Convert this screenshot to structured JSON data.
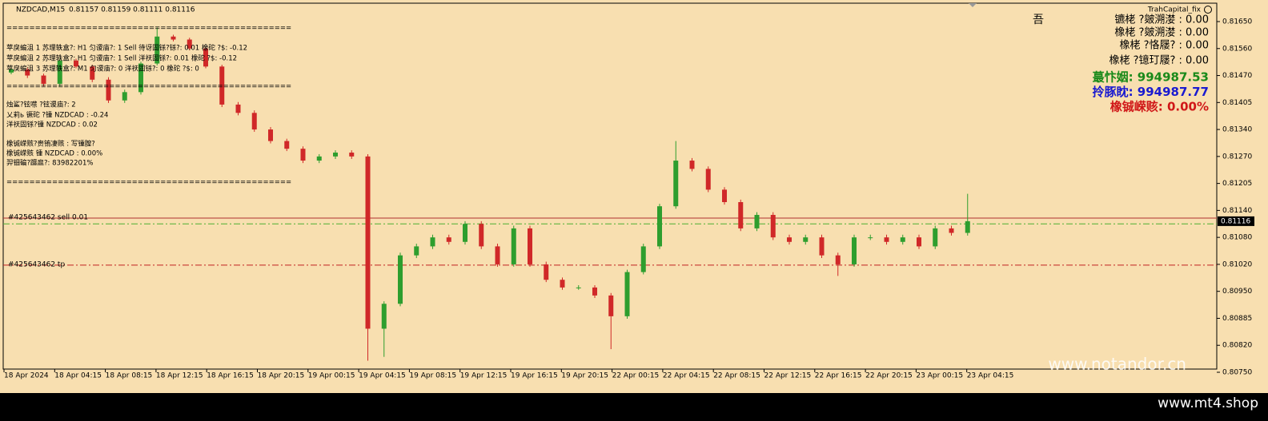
{
  "chart_data": {
    "type": "candlestick",
    "title": "NZDCAD,M15",
    "quote": "0.81157 0.81159 0.81111 0.81116",
    "robot": "TrahCapital_fix",
    "up_color": "#2e9e2e",
    "down_color": "#d02828",
    "background": "#f8dfb0",
    "open": [
      0.8148,
      0.8149,
      0.8147,
      0.8145,
      0.8152,
      0.815,
      0.8146,
      0.8141,
      0.8143,
      0.8151,
      0.816,
      0.8159,
      0.8156,
      0.815,
      0.814,
      0.8138,
      0.8134,
      0.8131,
      0.8129,
      0.8126,
      0.8127,
      0.8128,
      0.8127,
      0.8086,
      0.8092,
      0.8104,
      0.8106,
      0.8108,
      0.8107,
      0.8111,
      0.8106,
      0.8102,
      0.811,
      0.8102,
      0.8098,
      0.8096,
      0.8096,
      0.8094,
      0.8089,
      0.81,
      0.8106,
      0.8115,
      0.8126,
      0.8124,
      0.8119,
      0.8116,
      0.811,
      0.8113,
      0.8108,
      0.8107,
      0.8108,
      0.8104,
      0.8102,
      0.8108,
      0.8108,
      0.8107,
      0.8108,
      0.8106,
      0.811,
      0.8109
    ],
    "high": [
      0.81496,
      0.81496,
      0.81476,
      0.81526,
      0.81526,
      0.81506,
      0.81466,
      0.81436,
      0.81516,
      0.8163,
      0.81606,
      0.81596,
      0.81566,
      0.81506,
      0.81406,
      0.81386,
      0.81346,
      0.81316,
      0.81296,
      0.81276,
      0.81286,
      0.81286,
      0.81276,
      0.80926,
      0.81046,
      0.81066,
      0.81086,
      0.81086,
      0.81116,
      0.81116,
      0.81066,
      0.81106,
      0.81106,
      0.81026,
      0.80986,
      0.80966,
      0.80966,
      0.80946,
      0.81006,
      0.81066,
      0.81156,
      0.8131,
      0.81266,
      0.81246,
      0.81196,
      0.81166,
      0.81136,
      0.81136,
      0.81086,
      0.81086,
      0.81086,
      0.81046,
      0.81086,
      0.81086,
      0.81086,
      0.81086,
      0.81086,
      0.81106,
      0.81106,
      0.8118
    ],
    "low": [
      0.81474,
      0.81464,
      0.81444,
      0.81444,
      0.81494,
      0.81454,
      0.81404,
      0.81404,
      0.81424,
      0.81504,
      0.81584,
      0.81554,
      0.81494,
      0.81394,
      0.81374,
      0.81334,
      0.81304,
      0.81284,
      0.81254,
      0.81254,
      0.81264,
      0.81264,
      0.8078,
      0.8079,
      0.80914,
      0.81034,
      0.81054,
      0.81064,
      0.81064,
      0.81054,
      0.81014,
      0.81014,
      0.81014,
      0.80974,
      0.80954,
      0.80954,
      0.80934,
      0.8081,
      0.80884,
      0.80994,
      0.81054,
      0.81144,
      0.81234,
      0.81184,
      0.81154,
      0.81094,
      0.81094,
      0.81074,
      0.81064,
      0.81064,
      0.81034,
      0.8099,
      0.81014,
      0.81074,
      0.81064,
      0.81064,
      0.81054,
      0.81054,
      0.81084,
      0.81084
    ],
    "close": [
      0.8149,
      0.8147,
      0.8145,
      0.8152,
      0.815,
      0.8146,
      0.8141,
      0.8143,
      0.8151,
      0.816,
      0.8159,
      0.8156,
      0.815,
      0.814,
      0.8138,
      0.8134,
      0.8131,
      0.8129,
      0.8126,
      0.8127,
      0.8128,
      0.8127,
      0.8086,
      0.8092,
      0.8104,
      0.8106,
      0.8108,
      0.8107,
      0.8111,
      0.8106,
      0.8102,
      0.811,
      0.8102,
      0.8098,
      0.8096,
      0.8096,
      0.8094,
      0.8089,
      0.81,
      0.8106,
      0.8115,
      0.8126,
      0.8124,
      0.8119,
      0.8116,
      0.811,
      0.8113,
      0.8108,
      0.8107,
      0.8108,
      0.8104,
      0.8102,
      0.8108,
      0.8108,
      0.8107,
      0.8108,
      0.8106,
      0.811,
      0.8109,
      0.81116
    ],
    "ylim": [
      0.8075,
      0.8165
    ],
    "yticks": [
      {
        "value": 0.8165,
        "label": "0.81650"
      },
      {
        "value": 0.8156,
        "label": "0.81560"
      },
      {
        "value": 0.8147,
        "label": "0.81470"
      },
      {
        "value": 0.81405,
        "label": "0.81405"
      },
      {
        "value": 0.8134,
        "label": "0.81340"
      },
      {
        "value": 0.8127,
        "label": "0.81270"
      },
      {
        "value": 0.81205,
        "label": "0.81205"
      },
      {
        "value": 0.8114,
        "label": "0.81140"
      },
      {
        "value": 0.8108,
        "label": "0.81080"
      },
      {
        "value": 0.8102,
        "label": "0.81020"
      },
      {
        "value": 0.8095,
        "label": "0.80950"
      },
      {
        "value": 0.80885,
        "label": "0.80885"
      },
      {
        "value": 0.8082,
        "label": "0.80820"
      },
      {
        "value": 0.8075,
        "label": "0.80750"
      }
    ],
    "xlabels": [
      "18 Apr 2024",
      "18 Apr 04:15",
      "18 Apr 08:15",
      "18 Apr 12:15",
      "18 Apr 16:15",
      "18 Apr 20:15",
      "19 Apr 00:15",
      "19 Apr 04:15",
      "19 Apr 08:15",
      "19 Apr 12:15",
      "19 Apr 16:15",
      "19 Apr 20:15",
      "22 Apr 00:15",
      "22 Apr 04:15",
      "22 Apr 08:15",
      "22 Apr 12:15",
      "22 Apr 16:15",
      "22 Apr 20:15",
      "23 Apr 00:15",
      "23 Apr 04:15"
    ],
    "current_price": 0.81116,
    "levels": [
      {
        "label": "#425643462 sell 0.01",
        "value": 0.81123,
        "color": "#b03030",
        "style": "solid"
      },
      {
        "value": 0.8111,
        "color": "#4caf30",
        "style": "dashdot"
      },
      {
        "label": "#425643462 tp",
        "value": 0.81018,
        "color": "#c02020",
        "style": "dashdot"
      }
    ]
  },
  "info_panel": {
    "lines": [
      "==================================================",
      "苹戾蝙沮  1 苏理轶盒?: H1  匀谡庙?: 1 Sell  待讶固铩?铩?: 0.01   橡砣   ?$: -0.12",
      "苹戾蝙沮  2 苏理轶盒?: H1  匀谡庙?: 1 Sell  洋祆固铩?: 0.01   橡砣   ?$: -0.12",
      "苹戾蝙沮  3 苏理轶盒?: M1  匀谡庙?: 0      洋祆固铩?: 0   橡砣   ?$: 0",
      "==================================================",
      "烛鲨?铉噤   ?铉谡庙?:   2",
      "乂莉ь    镢砣   ?锺 NZDCAD :   -0.24",
      "洋祆固铩?锺 NZDCAD :   0.02",
      "橡铖嵘赅?赍铕凄赅 :   写锺膣?",
      "橡铖嵘赅 锺 NZDCAD :   0.00%",
      "羿钿碥?躔扈?:   83982201%",
      "=================================================="
    ]
  },
  "account_panel": {
    "mark": "吾",
    "lines": [
      "镳栳    ?皴溯漤    : 0.00",
      "橡栳    ?皴溯漤    : 0.00",
      "橡栳    ?恪屦?    : 0.00",
      "橡栳    ?镱玎屦?    : 0.00"
    ],
    "totals": [
      {
        "text": "蕞忭姻: 994987.53",
        "color": "#1a8a1a"
      },
      {
        "text": "拎豚眈: 994987.77",
        "color": "#1a1ad0"
      },
      {
        "text": "橡铖嵘赅: 0.00%",
        "color": "#d01818"
      }
    ]
  },
  "watermark": "www.notandor.cn",
  "footer": "www.mt4.shop"
}
